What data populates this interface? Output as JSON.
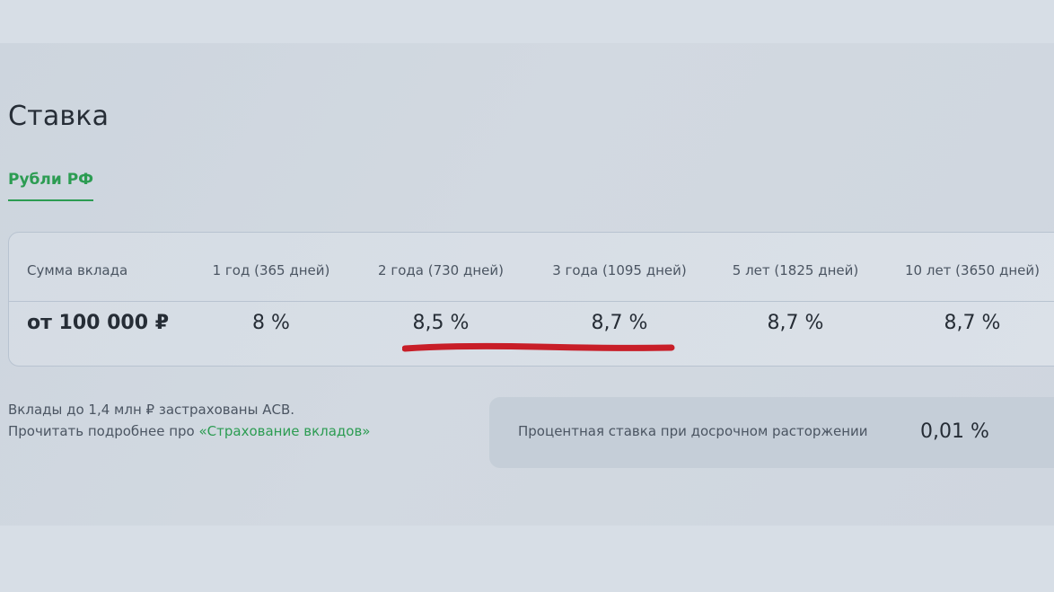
{
  "title": "Ставка",
  "tab": {
    "label": "Рубли РФ"
  },
  "table": {
    "headers": [
      "Сумма вклада",
      "1 год (365 дней)",
      "2 года (730 дней)",
      "3 года (1095 дней)",
      "5 лет (1825 дней)",
      "10 лет (3650 дней)"
    ],
    "row": [
      "от 100 000 ₽",
      "8 %",
      "8,5 %",
      "8,7 %",
      "8,7 %",
      "8,7 %"
    ]
  },
  "note": {
    "line1": "Вклады до 1,4 млн ₽ застрахованы АСВ.",
    "line2_prefix": "Прочитать подробнее про ",
    "link": "«Страхование вкладов»"
  },
  "early_termination": {
    "label": "Процентная ставка при досрочном расторжении",
    "value": "0,01 %"
  },
  "colors": {
    "accent": "#2c9c52",
    "annotation": "#c81e28",
    "text": "#262d36"
  }
}
